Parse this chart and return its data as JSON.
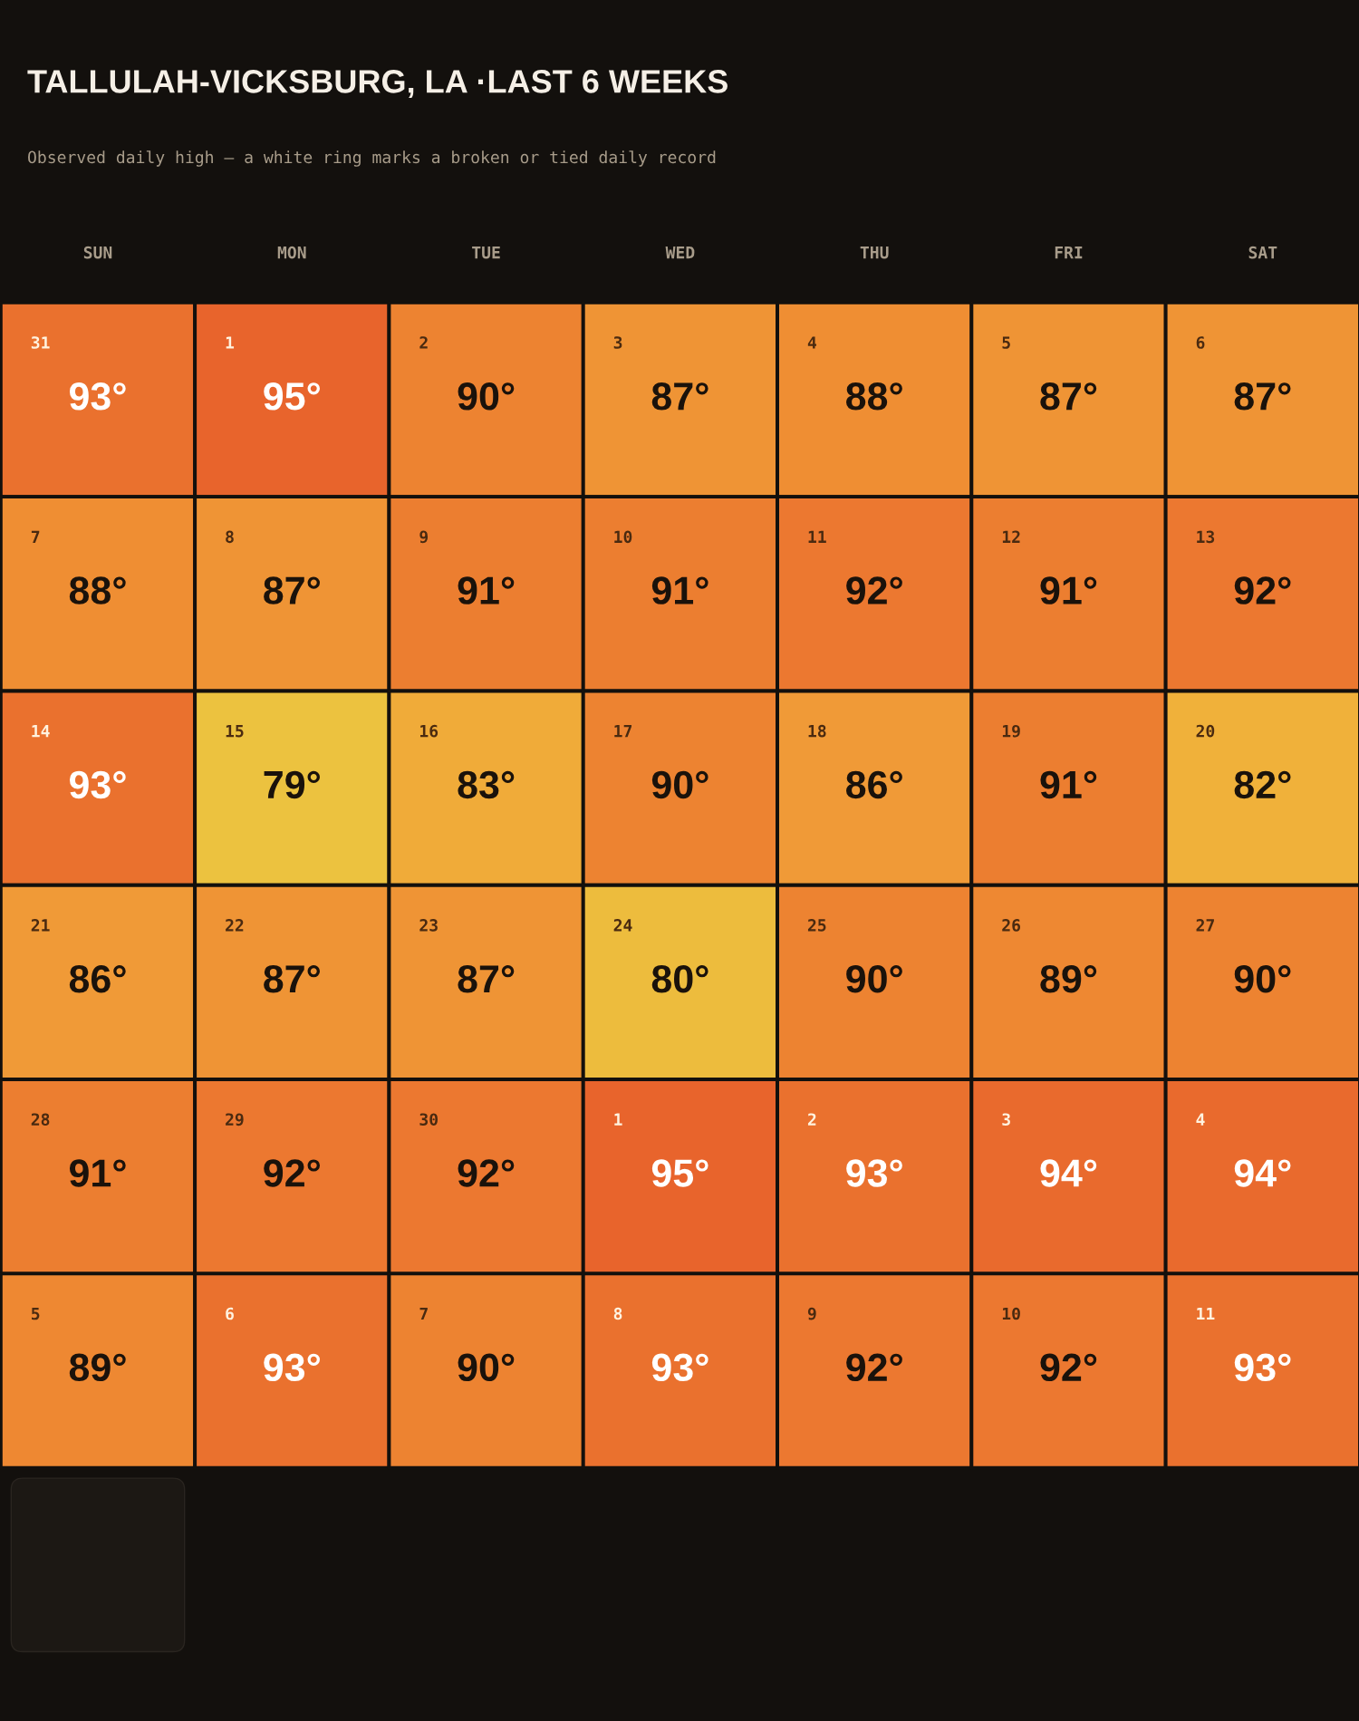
{
  "chart_data": {
    "type": "heatmap",
    "title": "TALLULAH-VICKSBURG, LA ·LAST 6 WEEKS",
    "subtitle": "Observed daily high — a white ring marks a broken or tied daily record",
    "categories": [
      "SUN",
      "MON",
      "TUE",
      "WED",
      "THU",
      "FRI",
      "SAT"
    ],
    "y_categories": [
      null,
      null,
      null,
      null,
      null,
      null
    ],
    "cells": [
      [
        93,
        95,
        90,
        87,
        88,
        87,
        87
      ],
      [
        88,
        87,
        91,
        91,
        92,
        91,
        92
      ],
      [
        93,
        79,
        83,
        90,
        86,
        91,
        82
      ],
      [
        86,
        87,
        87,
        80,
        90,
        89,
        90
      ],
      [
        91,
        92,
        92,
        95,
        93,
        94,
        94
      ],
      [
        89,
        93,
        90,
        93,
        92,
        92,
        93
      ]
    ],
    "cell_labels": [
      [
        "93°",
        "95°",
        "90°",
        "87°",
        "88°",
        "87°",
        "87°"
      ],
      [
        "88°",
        "87°",
        "91°",
        "91°",
        "92°",
        "91°",
        "92°"
      ],
      [
        "93°",
        "79°",
        "83°",
        "90°",
        "86°",
        "91°",
        "82°"
      ],
      [
        "86°",
        "87°",
        "87°",
        "80°",
        "90°",
        "89°",
        "90°"
      ],
      [
        "91°",
        "92°",
        "92°",
        "95°",
        "93°",
        "94°",
        "94°"
      ],
      [
        "89°",
        "93°",
        "90°",
        "93°",
        "92°",
        "92°",
        "93°"
      ]
    ],
    "annotations": [
      "31",
      "1",
      "2",
      "3",
      "4",
      "5",
      "6",
      "7",
      "8",
      "9",
      "10",
      "11",
      "12",
      "13",
      "14",
      "15",
      "16",
      "17",
      "18",
      "19",
      "20",
      "21",
      "22",
      "23",
      "24",
      "25",
      "26",
      "27",
      "28",
      "29",
      "30",
      "1",
      "2",
      "3",
      "4",
      "5",
      "6",
      "7",
      "8",
      "9",
      "10",
      "11"
    ]
  }
}
